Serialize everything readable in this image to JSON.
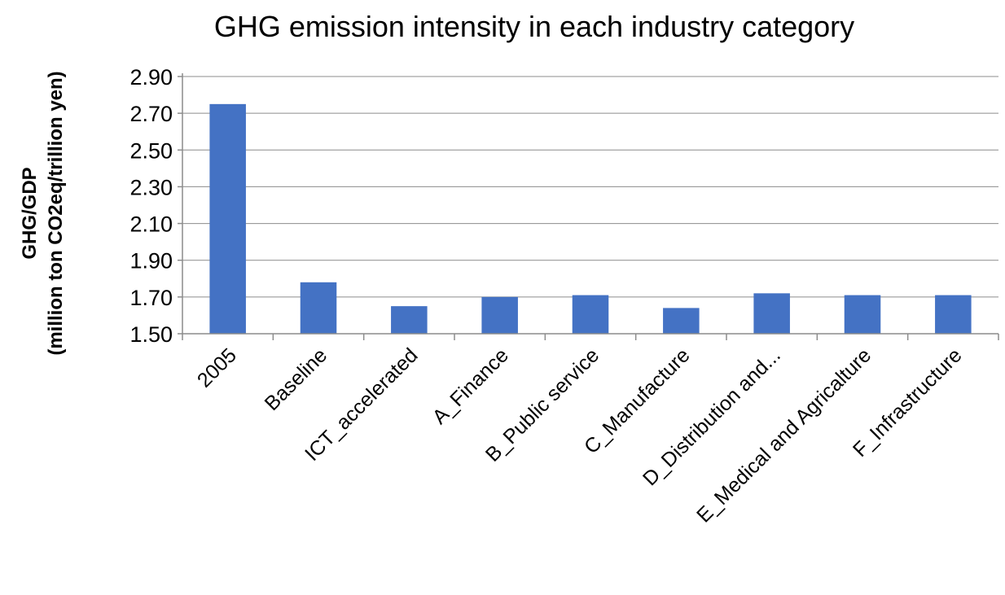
{
  "chart_data": {
    "type": "bar",
    "title": "GHG emission intensity in each industry category",
    "ylabel_line1": "GHG/GDP",
    "ylabel_line2": "(million ton CO2eq/trillion yen)",
    "xlabel": "",
    "categories": [
      "2005",
      "Baseline",
      "ICT_accelerated",
      "A_Finance",
      "B_Public service",
      "C_Manufacture",
      "D_Distribution and...",
      "E_Medical and Agricalture",
      "F_Infrastructure"
    ],
    "values": [
      2.75,
      1.78,
      1.65,
      1.7,
      1.71,
      1.64,
      1.72,
      1.71,
      1.71
    ],
    "ylim": [
      1.5,
      2.9
    ],
    "yticks": [
      "1.50",
      "1.70",
      "1.90",
      "2.10",
      "2.30",
      "2.50",
      "2.70",
      "2.90"
    ],
    "grid": true,
    "legend": "none",
    "bar_color": "#4472c4"
  }
}
